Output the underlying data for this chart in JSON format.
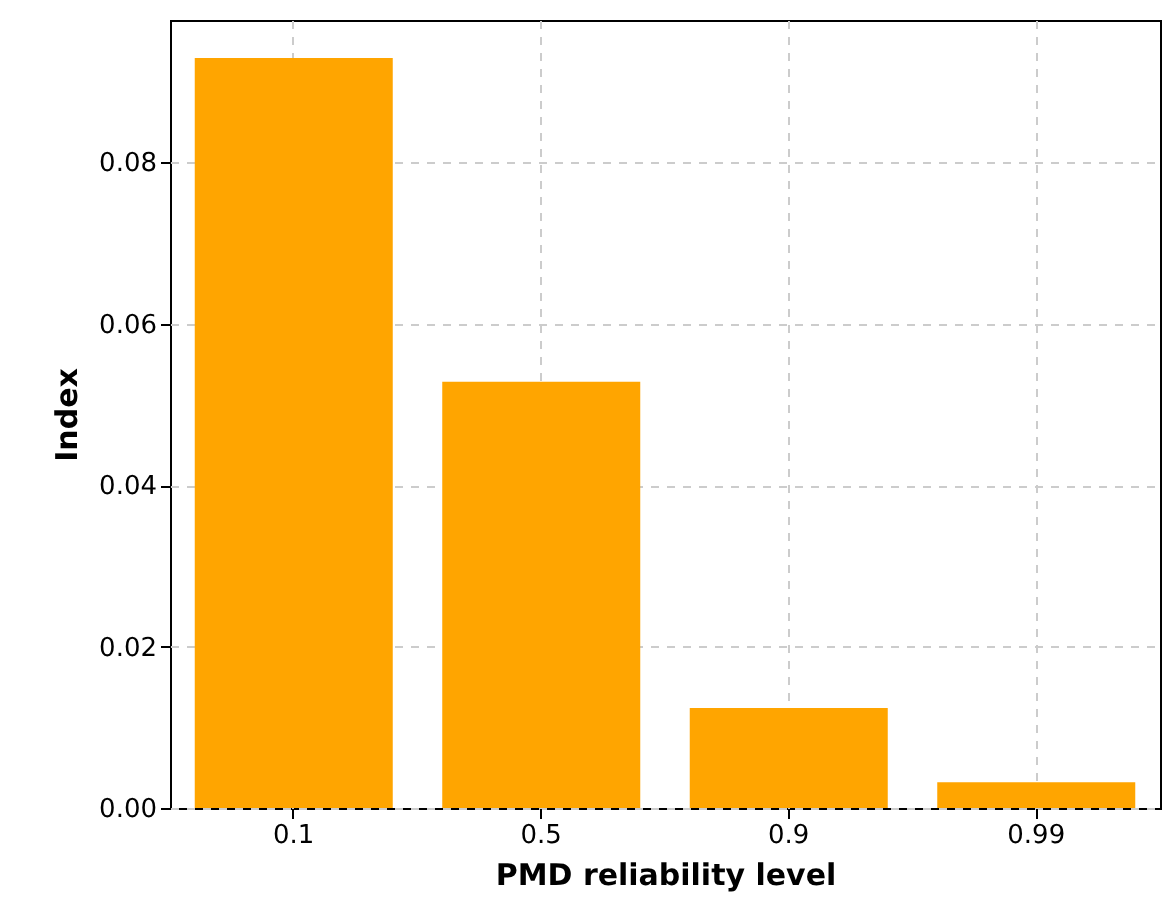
{
  "chart_data": {
    "type": "bar",
    "xlabel": "PMD reliability level",
    "ylabel": "Index",
    "categories": [
      "0.1",
      "0.5",
      "0.9",
      "0.99"
    ],
    "values": [
      0.0929,
      0.0528,
      0.0124,
      0.0032
    ],
    "color": "#ffa500",
    "ylim": [
      0,
      0.0976
    ],
    "yticks": [
      {
        "value": 0,
        "label": "0.00"
      },
      {
        "value": 0.02,
        "label": "0.02"
      },
      {
        "value": 0.04,
        "label": "0.04"
      },
      {
        "value": 0.06,
        "label": "0.06"
      },
      {
        "value": 0.08,
        "label": "0.08"
      }
    ],
    "grid": true
  }
}
